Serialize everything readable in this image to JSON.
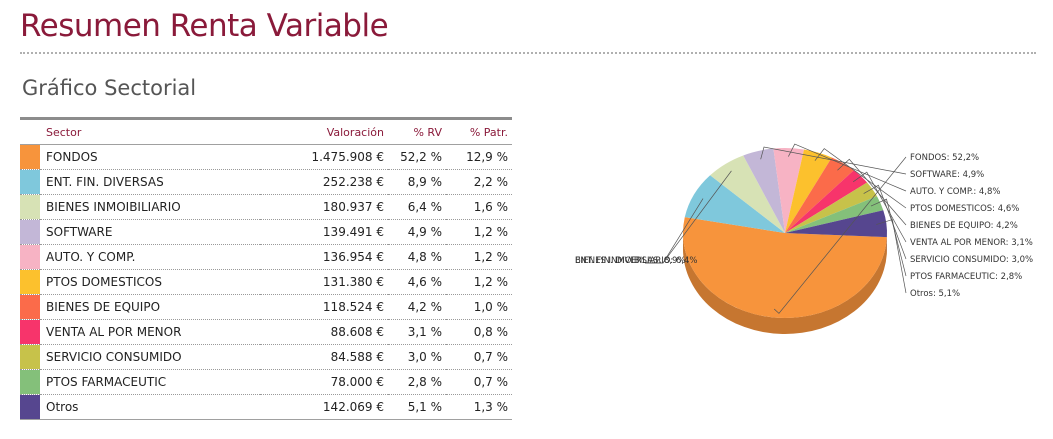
{
  "header": {
    "title": "Resumen Renta Variable"
  },
  "section": {
    "title": "Gráfico Sectorial"
  },
  "table": {
    "columns": {
      "sector": "Sector",
      "valoracion": "Valoración",
      "rv": "% RV",
      "patr": "% Patr."
    },
    "rows": [
      {
        "name": "FONDOS",
        "valoracion": "1.475.908 €",
        "rv": "52,2 %",
        "patr": "12,9 %",
        "color": "#f7943c"
      },
      {
        "name": "ENT. FIN. DIVERSAS",
        "valoracion": "252.238 €",
        "rv": "8,9 %",
        "patr": "2,2 %",
        "color": "#7fc8dc"
      },
      {
        "name": "BIENES INMOIBILIARIO",
        "valoracion": "180.937 €",
        "rv": "6,4 %",
        "patr": "1,6 %",
        "color": "#d7e2b5"
      },
      {
        "name": "SOFTWARE",
        "valoracion": "139.491 €",
        "rv": "4,9 %",
        "patr": "1,2 %",
        "color": "#c3b7d7"
      },
      {
        "name": "AUTO. Y COMP.",
        "valoracion": "136.954 €",
        "rv": "4,8 %",
        "patr": "1,2 %",
        "color": "#f7b3c4"
      },
      {
        "name": "PTOS DOMESTICOS",
        "valoracion": "131.380 €",
        "rv": "4,6 %",
        "patr": "1,2 %",
        "color": "#fcc12d"
      },
      {
        "name": "BIENES DE EQUIPO",
        "valoracion": "118.524 €",
        "rv": "4,2 %",
        "patr": "1,0 %",
        "color": "#fb6b4a"
      },
      {
        "name": "VENTA AL POR MENOR",
        "valoracion": "88.608 €",
        "rv": "3,1 %",
        "patr": "0,8 %",
        "color": "#f7346b"
      },
      {
        "name": "SERVICIO CONSUMIDO",
        "valoracion": "84.588 €",
        "rv": "3,0 %",
        "patr": "0,7 %",
        "color": "#c7c24a"
      },
      {
        "name": "PTOS FARMACEUTIC",
        "valoracion": "78.000 €",
        "rv": "2,8 %",
        "patr": "0,7 %",
        "color": "#84c07a"
      },
      {
        "name": "Otros",
        "valoracion": "142.069 €",
        "rv": "5,1 %",
        "patr": "1,3 %",
        "color": "#56468f"
      }
    ]
  },
  "chart_data": {
    "type": "pie",
    "legend": "callout-labels",
    "slices": [
      {
        "label": "FONDOS: 52,2%",
        "value": 52.2,
        "color": "#f7943c"
      },
      {
        "label": "ENT. FIN. DIVERSAS: 8,9%",
        "value": 8.9,
        "color": "#7fc8dc"
      },
      {
        "label": "BIENES INMOIBILIARIO: 6,4%",
        "value": 6.4,
        "color": "#d7e2b5"
      },
      {
        "label": "SOFTWARE: 4,9%",
        "value": 4.9,
        "color": "#c3b7d7"
      },
      {
        "label": "AUTO. Y COMP.: 4,8%",
        "value": 4.8,
        "color": "#f7b3c4"
      },
      {
        "label": "PTOS DOMESTICOS: 4,6%",
        "value": 4.6,
        "color": "#fcc12d"
      },
      {
        "label": "BIENES DE EQUIPO: 4,2%",
        "value": 4.2,
        "color": "#fb6b4a"
      },
      {
        "label": "VENTA AL POR MENOR: 3,1%",
        "value": 3.1,
        "color": "#f7346b"
      },
      {
        "label": "SERVICIO CONSUMIDO: 3,0%",
        "value": 3.0,
        "color": "#c7c24a"
      },
      {
        "label": "PTOS FARMACEUTIC: 2,8%",
        "value": 2.8,
        "color": "#84c07a"
      },
      {
        "label": "Otros: 5,1%",
        "value": 5.1,
        "color": "#56468f"
      }
    ]
  }
}
